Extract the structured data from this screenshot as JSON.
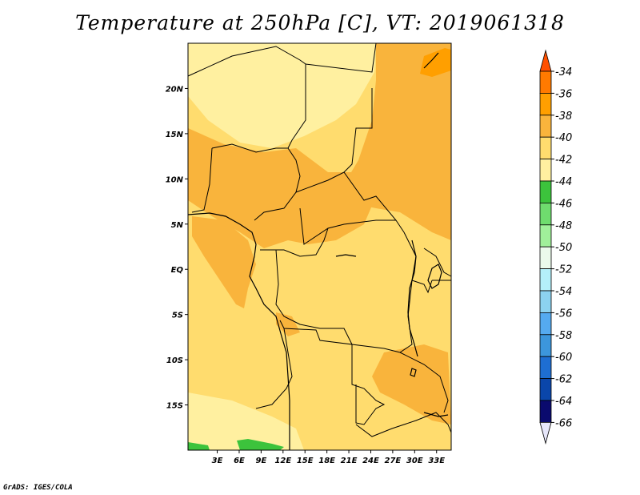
{
  "title": "Temperature at 250hPa [C], VT: 2019061318",
  "credit": "GrADS: IGES/COLA",
  "map": {
    "lon_range": [
      -1,
      35
    ],
    "lat_range": [
      -20,
      25
    ],
    "lon_ticks": [
      "3E",
      "6E",
      "9E",
      "12E",
      "15E",
      "18E",
      "21E",
      "24E",
      "27E",
      "30E",
      "33E"
    ],
    "lat_ticks": [
      "20N",
      "15N",
      "10N",
      "5N",
      "EQ",
      "5S",
      "10S",
      "15S"
    ]
  },
  "colorbar": {
    "labels": [
      "-34",
      "-36",
      "-38",
      "-40",
      "-42",
      "-44",
      "-46",
      "-48",
      "-50",
      "-52",
      "-54",
      "-56",
      "-58",
      "-60",
      "-62",
      "-64",
      "-66"
    ],
    "colors": [
      "#ff5000",
      "#ff7a00",
      "#ff9f00",
      "#f9b43c",
      "#ffdc6e",
      "#fff0a0",
      "#3cc33c",
      "#6fdc6e",
      "#a0f09a",
      "#ebfaeb",
      "#b4f0fa",
      "#8cd2f0",
      "#55aaf0",
      "#3c96dc",
      "#1e6ed2",
      "#0a46aa",
      "#0a0a6e"
    ]
  },
  "field_colors": {
    "warm": "#f9b43c",
    "base": "#ffdc6e",
    "cool": "#fff0a0",
    "cold": "#3cc33c"
  }
}
